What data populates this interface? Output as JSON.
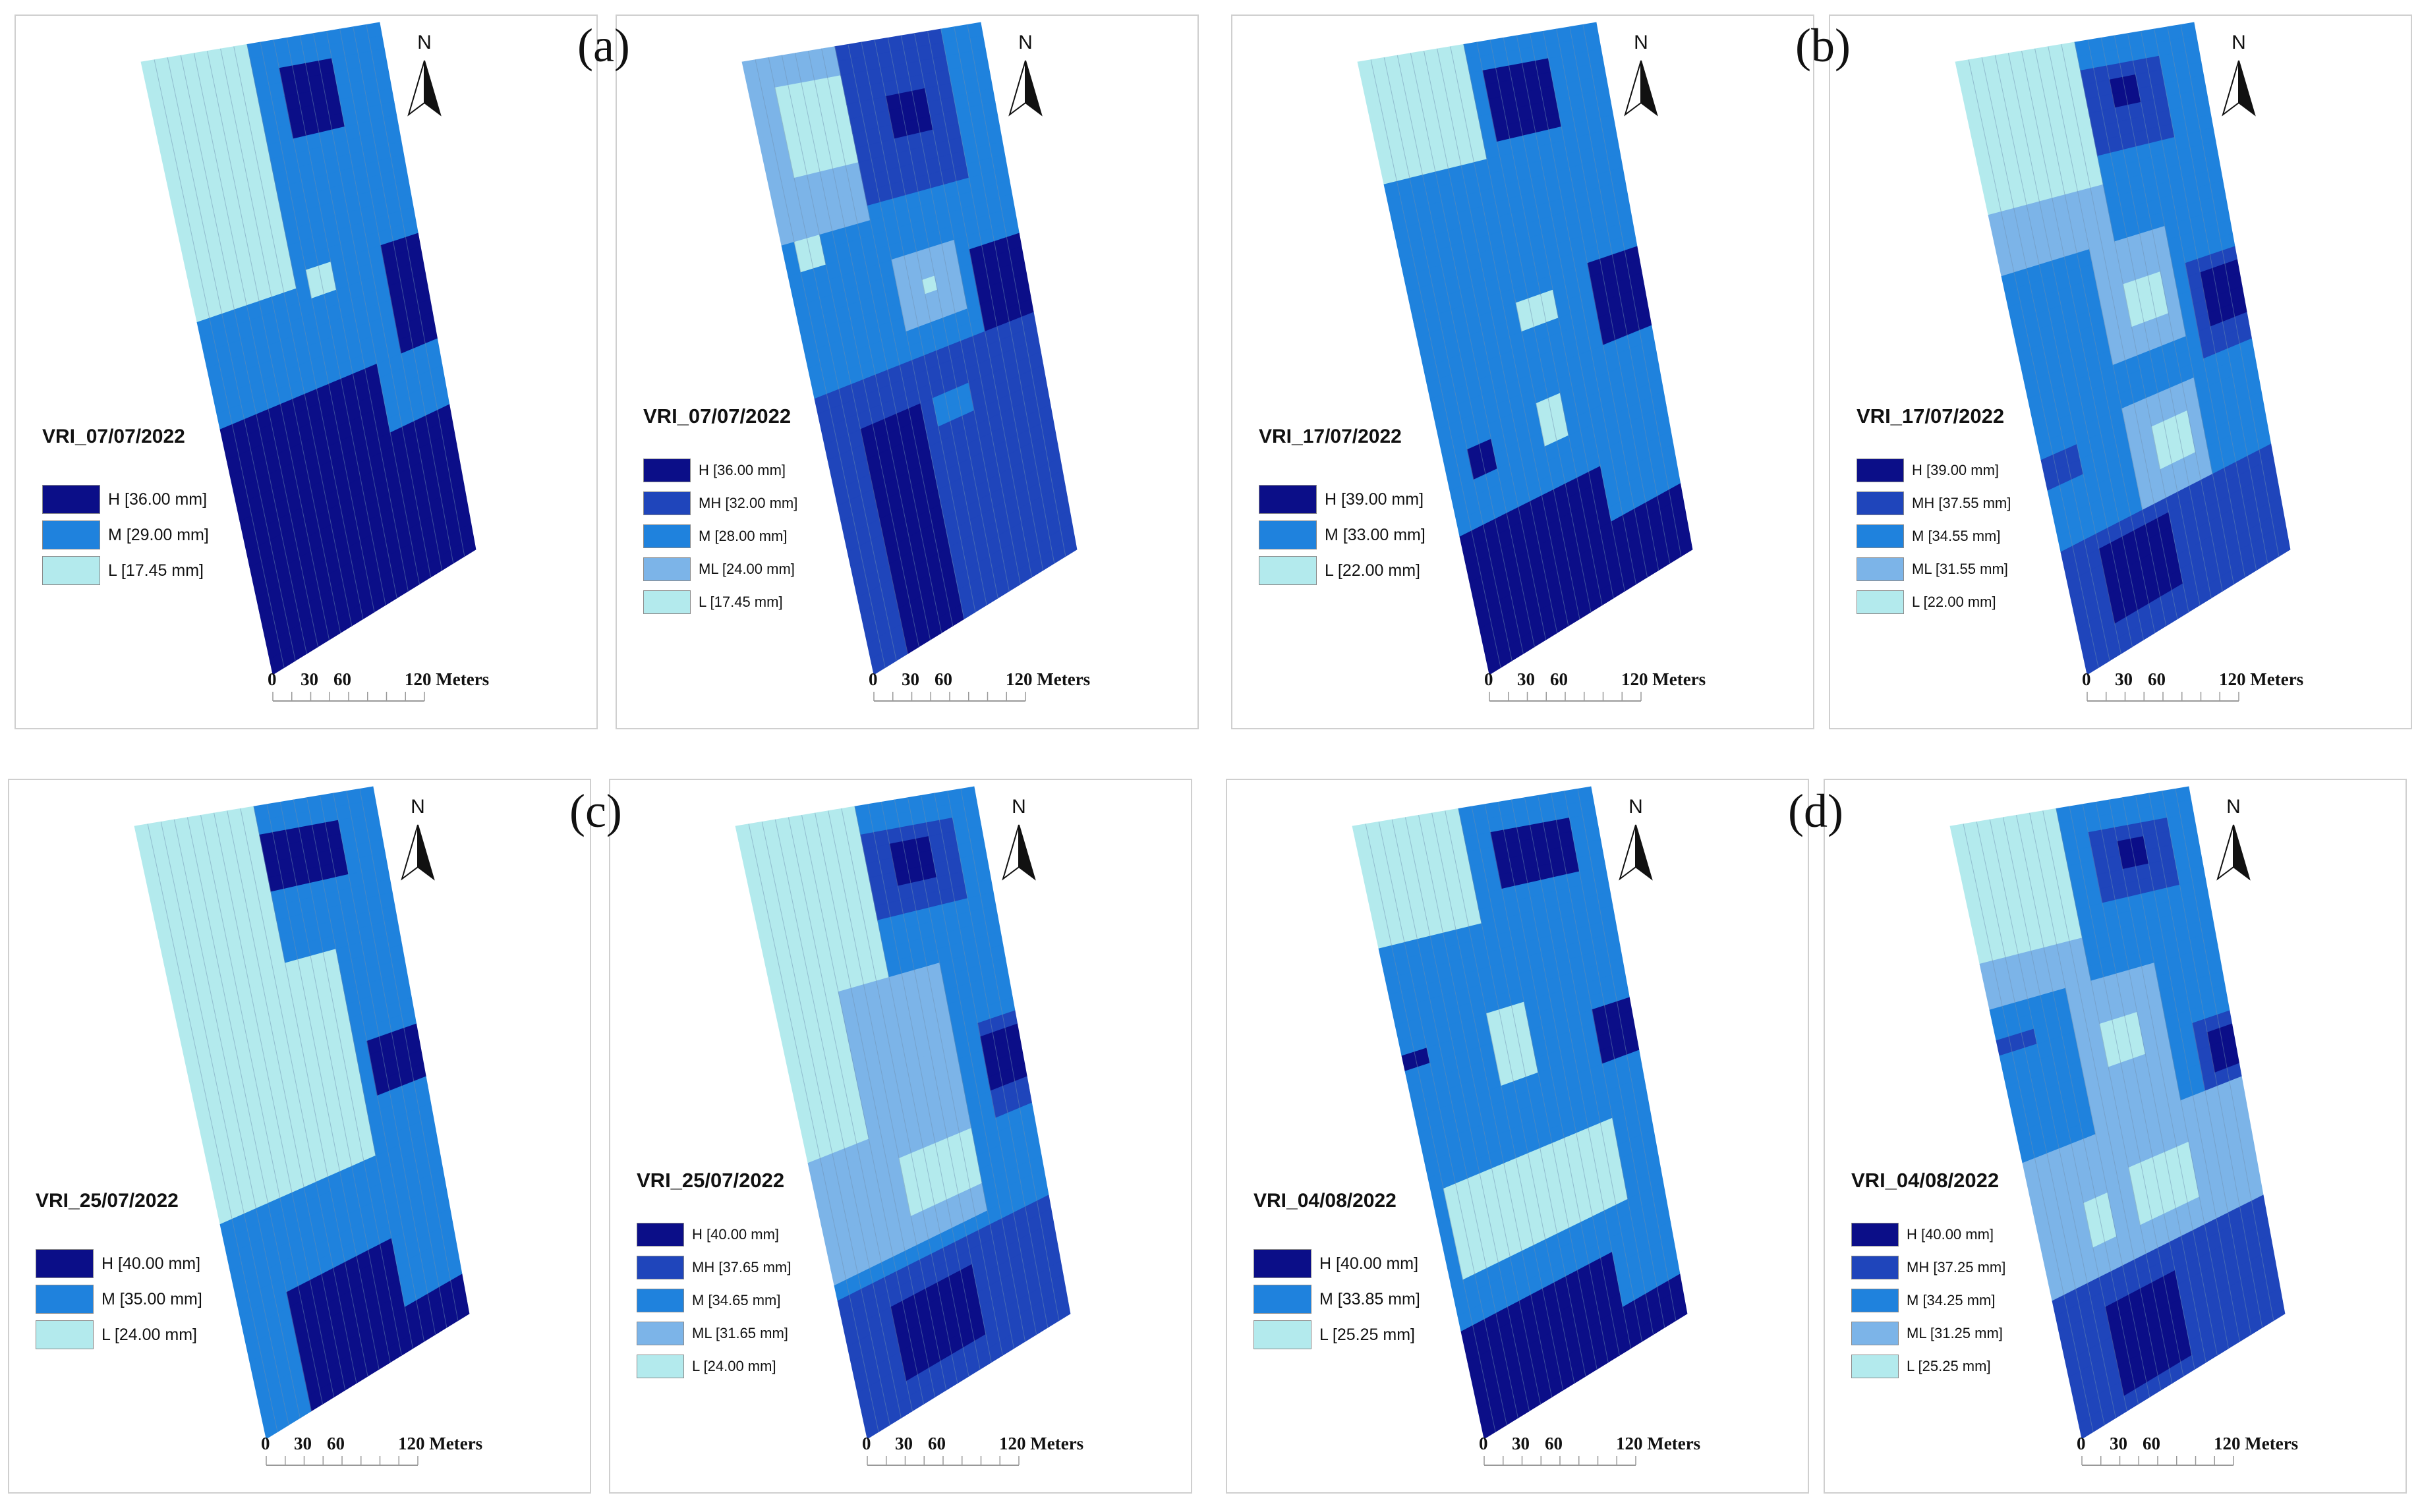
{
  "figure_letters": [
    "(a)",
    "(b)",
    "(c)",
    "(d)"
  ],
  "classes": {
    "H": {
      "code": "H",
      "color": "#0b0e88"
    },
    "MH": {
      "code": "MH",
      "color": "#1f45bb"
    },
    "M": {
      "code": "M",
      "color": "#1f82dd"
    },
    "ML": {
      "code": "ML",
      "color": "#7cb4e8"
    },
    "L": {
      "code": "L",
      "color": "#b3eaed"
    }
  },
  "north": "N",
  "scale_bar": {
    "ticks": [
      "0",
      "30",
      "60"
    ],
    "end": "120 Meters"
  },
  "panels": [
    {
      "title": "VRI_07/07/2022",
      "zones": 3,
      "legend": [
        {
          "cls": "H",
          "label": "H [36.00 mm]"
        },
        {
          "cls": "M",
          "label": "M [29.00 mm]"
        },
        {
          "cls": "L",
          "label": "L [17.45 mm]"
        }
      ]
    },
    {
      "title": "VRI_07/07/2022",
      "zones": 5,
      "legend": [
        {
          "cls": "H",
          "label": "H [36.00 mm]"
        },
        {
          "cls": "MH",
          "label": "MH [32.00 mm]"
        },
        {
          "cls": "M",
          "label": "M [28.00 mm]"
        },
        {
          "cls": "ML",
          "label": "ML [24.00 mm]"
        },
        {
          "cls": "L",
          "label": "L [17.45 mm]"
        }
      ]
    },
    {
      "title": "VRI_17/07/2022",
      "zones": 3,
      "legend": [
        {
          "cls": "H",
          "label": "H [39.00 mm]"
        },
        {
          "cls": "M",
          "label": "M [33.00 mm]"
        },
        {
          "cls": "L",
          "label": "L [22.00 mm]"
        }
      ]
    },
    {
      "title": "VRI_17/07/2022",
      "zones": 5,
      "legend": [
        {
          "cls": "H",
          "label": "H [39.00 mm]"
        },
        {
          "cls": "MH",
          "label": "MH [37.55 mm]"
        },
        {
          "cls": "M",
          "label": "M [34.55 mm]"
        },
        {
          "cls": "ML",
          "label": "ML [31.55 mm]"
        },
        {
          "cls": "L",
          "label": "L [22.00 mm]"
        }
      ]
    },
    {
      "title": "VRI_25/07/2022",
      "zones": 3,
      "legend": [
        {
          "cls": "H",
          "label": "H [40.00 mm]"
        },
        {
          "cls": "M",
          "label": "M [35.00 mm]"
        },
        {
          "cls": "L",
          "label": "L [24.00 mm]"
        }
      ]
    },
    {
      "title": "VRI_25/07/2022",
      "zones": 5,
      "legend": [
        {
          "cls": "H",
          "label": "H [40.00 mm]"
        },
        {
          "cls": "MH",
          "label": "MH [37.65 mm]"
        },
        {
          "cls": "M",
          "label": "M [34.65 mm]"
        },
        {
          "cls": "ML",
          "label": "ML [31.65 mm]"
        },
        {
          "cls": "L",
          "label": "L [24.00 mm]"
        }
      ]
    },
    {
      "title": "VRI_04/08/2022",
      "zones": 3,
      "legend": [
        {
          "cls": "H",
          "label": "H [40.00 mm]"
        },
        {
          "cls": "M",
          "label": "M [33.85 mm]"
        },
        {
          "cls": "L",
          "label": "L [25.25 mm]"
        }
      ]
    },
    {
      "title": "VRI_04/08/2022",
      "zones": 5,
      "legend": [
        {
          "cls": "H",
          "label": "H [40.00 mm]"
        },
        {
          "cls": "MH",
          "label": "MH [37.25 mm]"
        },
        {
          "cls": "M",
          "label": "M [34.25 mm]"
        },
        {
          "cls": "ML",
          "label": "ML [31.25 mm]"
        },
        {
          "cls": "L",
          "label": "L [25.25 mm]"
        }
      ]
    }
  ]
}
